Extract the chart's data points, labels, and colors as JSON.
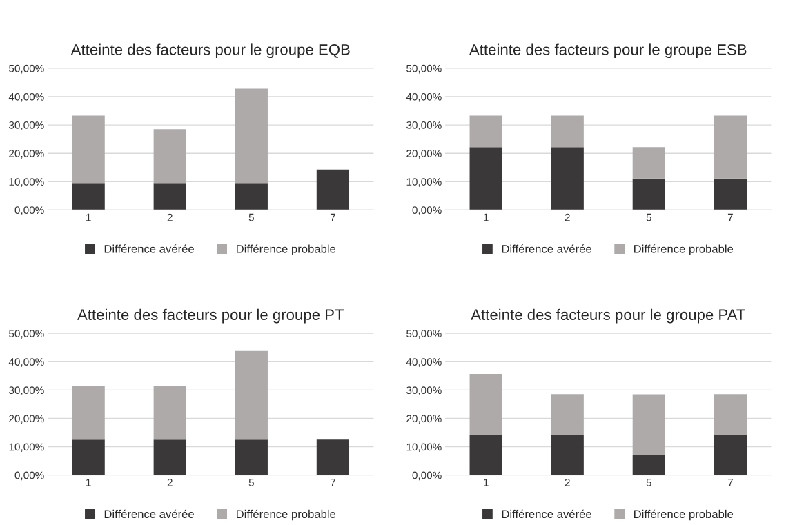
{
  "chart_data": [
    {
      "type": "bar",
      "title": "Atteinte des facteurs pour le groupe EQB",
      "categories": [
        "1",
        "2",
        "5",
        "7"
      ],
      "stacked": true,
      "legend": "bottom",
      "grid": "y",
      "ylim": [
        0,
        50
      ],
      "yticks": [
        {
          "value": 0,
          "label": "0,00%"
        },
        {
          "value": 10,
          "label": "10,00%"
        },
        {
          "value": 20,
          "label": "20,00%"
        },
        {
          "value": 30,
          "label": "30,00%"
        },
        {
          "value": 40,
          "label": "40,00%"
        },
        {
          "value": 50,
          "label": "50,00%"
        }
      ],
      "series": [
        {
          "name": "Différence avérée",
          "color": "#3a3838",
          "values": [
            9.5,
            9.5,
            9.5,
            14.3
          ]
        },
        {
          "name": "Différence probable",
          "color": "#aeaaaa",
          "values": [
            23.8,
            19.0,
            33.3,
            0
          ]
        }
      ]
    },
    {
      "type": "bar",
      "title": "Atteinte des facteurs pour le groupe ESB",
      "categories": [
        "1",
        "2",
        "5",
        "7"
      ],
      "stacked": true,
      "legend": "bottom",
      "grid": "y",
      "ylim": [
        0,
        50
      ],
      "yticks": [
        {
          "value": 0,
          "label": "0,00%"
        },
        {
          "value": 10,
          "label": "10,00%"
        },
        {
          "value": 20,
          "label": "20,00%"
        },
        {
          "value": 30,
          "label": "30,00%"
        },
        {
          "value": 40,
          "label": "40,00%"
        },
        {
          "value": 50,
          "label": "50,00%"
        }
      ],
      "series": [
        {
          "name": "Différence avérée",
          "color": "#3a3838",
          "values": [
            22.2,
            22.2,
            11.1,
            11.1
          ]
        },
        {
          "name": "Différence probable",
          "color": "#aeaaaa",
          "values": [
            11.1,
            11.1,
            11.1,
            22.2
          ]
        }
      ]
    },
    {
      "type": "bar",
      "title": "Atteinte des facteurs pour le groupe PT",
      "categories": [
        "1",
        "2",
        "5",
        "7"
      ],
      "stacked": true,
      "legend": "bottom",
      "grid": "y",
      "ylim": [
        0,
        50
      ],
      "yticks": [
        {
          "value": 0,
          "label": "0,00%"
        },
        {
          "value": 10,
          "label": "10,00%"
        },
        {
          "value": 20,
          "label": "20,00%"
        },
        {
          "value": 30,
          "label": "30,00%"
        },
        {
          "value": 40,
          "label": "40,00%"
        },
        {
          "value": 50,
          "label": "50,00%"
        }
      ],
      "series": [
        {
          "name": "Différence avérée",
          "color": "#3a3838",
          "values": [
            12.5,
            12.5,
            12.5,
            12.5
          ]
        },
        {
          "name": "Différence probable",
          "color": "#aeaaaa",
          "values": [
            18.8,
            18.8,
            31.3,
            0
          ]
        }
      ]
    },
    {
      "type": "bar",
      "title": "Atteinte des facteurs pour le groupe PAT",
      "categories": [
        "1",
        "2",
        "5",
        "7"
      ],
      "stacked": true,
      "legend": "bottom",
      "grid": "y",
      "ylim": [
        0,
        50
      ],
      "yticks": [
        {
          "value": 0,
          "label": "0,00%"
        },
        {
          "value": 10,
          "label": "10,00%"
        },
        {
          "value": 20,
          "label": "20,00%"
        },
        {
          "value": 30,
          "label": "30,00%"
        },
        {
          "value": 40,
          "label": "40,00%"
        },
        {
          "value": 50,
          "label": "50,00%"
        }
      ],
      "series": [
        {
          "name": "Différence avérée",
          "color": "#3a3838",
          "values": [
            14.3,
            14.3,
            7.1,
            14.3
          ]
        },
        {
          "name": "Différence probable",
          "color": "#aeaaaa",
          "values": [
            21.4,
            14.3,
            21.4,
            14.3
          ]
        }
      ]
    }
  ]
}
